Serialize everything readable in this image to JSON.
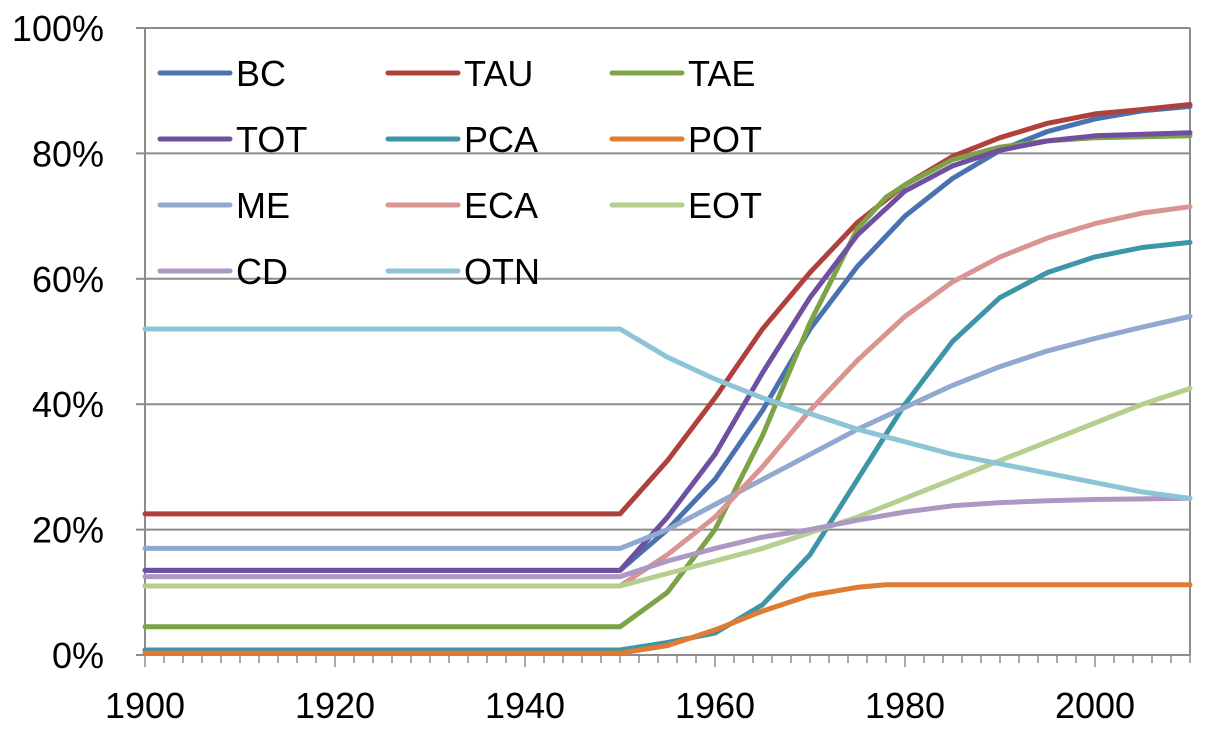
{
  "chart_data": {
    "type": "line",
    "title": "",
    "xlabel": "",
    "ylabel": "",
    "xlim": [
      1900,
      2010
    ],
    "ylim": [
      0,
      100
    ],
    "y_unit": "%",
    "grid": true,
    "legend_position": "top-left",
    "y_ticks": [
      {
        "value": 0,
        "label": "0%"
      },
      {
        "value": 20,
        "label": "20%"
      },
      {
        "value": 40,
        "label": "40%"
      },
      {
        "value": 60,
        "label": "60%"
      },
      {
        "value": 80,
        "label": "80%"
      },
      {
        "value": 100,
        "label": "100%"
      }
    ],
    "x_ticks": [
      {
        "value": 1900,
        "label": "1900"
      },
      {
        "value": 1920,
        "label": "1920"
      },
      {
        "value": 1940,
        "label": "1940"
      },
      {
        "value": 1960,
        "label": "1960"
      },
      {
        "value": 1980,
        "label": "1980"
      },
      {
        "value": 2000,
        "label": "2000"
      }
    ],
    "series": [
      {
        "name": "BC",
        "color": "#4a72b0",
        "points": [
          [
            1900,
            13.5
          ],
          [
            1950,
            13.5
          ],
          [
            1955,
            20
          ],
          [
            1960,
            28
          ],
          [
            1965,
            39
          ],
          [
            1970,
            52
          ],
          [
            1975,
            62
          ],
          [
            1980,
            70
          ],
          [
            1985,
            76
          ],
          [
            1990,
            80.5
          ],
          [
            1995,
            83.5
          ],
          [
            2000,
            85.5
          ],
          [
            2005,
            86.8
          ],
          [
            2010,
            87.5
          ]
        ]
      },
      {
        "name": "TAU",
        "color": "#b0403c",
        "points": [
          [
            1900,
            22.5
          ],
          [
            1950,
            22.5
          ],
          [
            1955,
            31
          ],
          [
            1960,
            41
          ],
          [
            1965,
            52
          ],
          [
            1970,
            61
          ],
          [
            1975,
            69
          ],
          [
            1980,
            75
          ],
          [
            1985,
            79.5
          ],
          [
            1990,
            82.5
          ],
          [
            1995,
            84.8
          ],
          [
            2000,
            86.3
          ],
          [
            2005,
            87
          ],
          [
            2010,
            87.8
          ]
        ]
      },
      {
        "name": "TAE",
        "color": "#7da347",
        "points": [
          [
            1900,
            4.5
          ],
          [
            1950,
            4.5
          ],
          [
            1955,
            10
          ],
          [
            1960,
            20
          ],
          [
            1965,
            35
          ],
          [
            1970,
            53
          ],
          [
            1975,
            68
          ],
          [
            1978,
            73
          ],
          [
            1980,
            75
          ],
          [
            1985,
            79
          ],
          [
            1990,
            81
          ],
          [
            1995,
            82
          ],
          [
            2000,
            82.5
          ],
          [
            2010,
            82.8
          ]
        ]
      },
      {
        "name": "TOT",
        "color": "#6f4fa0",
        "points": [
          [
            1900,
            13.5
          ],
          [
            1950,
            13.5
          ],
          [
            1955,
            22
          ],
          [
            1960,
            32
          ],
          [
            1965,
            45
          ],
          [
            1970,
            57
          ],
          [
            1975,
            67
          ],
          [
            1980,
            74
          ],
          [
            1985,
            78
          ],
          [
            1990,
            80.5
          ],
          [
            1995,
            82
          ],
          [
            2000,
            82.8
          ],
          [
            2010,
            83.3
          ]
        ]
      },
      {
        "name": "PCA",
        "color": "#3e95a8",
        "points": [
          [
            1900,
            0.8
          ],
          [
            1950,
            0.8
          ],
          [
            1955,
            2
          ],
          [
            1960,
            3.5
          ],
          [
            1965,
            8
          ],
          [
            1970,
            16
          ],
          [
            1975,
            28
          ],
          [
            1980,
            40
          ],
          [
            1985,
            50
          ],
          [
            1990,
            57
          ],
          [
            1995,
            61
          ],
          [
            2000,
            63.5
          ],
          [
            2005,
            65
          ],
          [
            2010,
            65.8
          ]
        ]
      },
      {
        "name": "POT",
        "color": "#e07b34",
        "points": [
          [
            1900,
            0.3
          ],
          [
            1950,
            0.3
          ],
          [
            1955,
            1.5
          ],
          [
            1960,
            4
          ],
          [
            1965,
            7
          ],
          [
            1970,
            9.5
          ],
          [
            1975,
            10.8
          ],
          [
            1978,
            11.2
          ],
          [
            1985,
            11.2
          ],
          [
            2010,
            11.2
          ]
        ]
      },
      {
        "name": "ME",
        "color": "#91a8d0",
        "points": [
          [
            1900,
            17
          ],
          [
            1950,
            17
          ],
          [
            1955,
            20
          ],
          [
            1960,
            24
          ],
          [
            1965,
            28
          ],
          [
            1970,
            32
          ],
          [
            1975,
            36
          ],
          [
            1980,
            39.5
          ],
          [
            1985,
            43
          ],
          [
            1990,
            46
          ],
          [
            1995,
            48.5
          ],
          [
            2000,
            50.5
          ],
          [
            2005,
            52.3
          ],
          [
            2010,
            54
          ]
        ]
      },
      {
        "name": "ECA",
        "color": "#d99592",
        "points": [
          [
            1900,
            11
          ],
          [
            1950,
            11
          ],
          [
            1955,
            16
          ],
          [
            1960,
            22
          ],
          [
            1965,
            30
          ],
          [
            1970,
            39
          ],
          [
            1975,
            47
          ],
          [
            1980,
            54
          ],
          [
            1985,
            59.5
          ],
          [
            1990,
            63.5
          ],
          [
            1995,
            66.5
          ],
          [
            2000,
            68.8
          ],
          [
            2005,
            70.5
          ],
          [
            2010,
            71.5
          ]
        ]
      },
      {
        "name": "EOT",
        "color": "#b5cf8e",
        "points": [
          [
            1900,
            11
          ],
          [
            1950,
            11
          ],
          [
            1955,
            13
          ],
          [
            1960,
            15
          ],
          [
            1965,
            17
          ],
          [
            1970,
            19.5
          ],
          [
            1975,
            22
          ],
          [
            1980,
            25
          ],
          [
            1985,
            28
          ],
          [
            1990,
            31
          ],
          [
            1995,
            34
          ],
          [
            2000,
            37
          ],
          [
            2005,
            40
          ],
          [
            2010,
            42.5
          ]
        ]
      },
      {
        "name": "CD",
        "color": "#ad98c4",
        "points": [
          [
            1900,
            12.5
          ],
          [
            1950,
            12.5
          ],
          [
            1955,
            15
          ],
          [
            1960,
            17
          ],
          [
            1965,
            18.8
          ],
          [
            1970,
            20
          ],
          [
            1975,
            21.5
          ],
          [
            1980,
            22.8
          ],
          [
            1985,
            23.8
          ],
          [
            1990,
            24.3
          ],
          [
            1995,
            24.6
          ],
          [
            2000,
            24.8
          ],
          [
            2010,
            25
          ]
        ]
      },
      {
        "name": "OTN",
        "color": "#8ec4d8",
        "points": [
          [
            1900,
            52
          ],
          [
            1950,
            52
          ],
          [
            1955,
            47.5
          ],
          [
            1960,
            44
          ],
          [
            1965,
            41
          ],
          [
            1970,
            38.5
          ],
          [
            1975,
            36
          ],
          [
            1980,
            34
          ],
          [
            1985,
            32
          ],
          [
            1990,
            30.5
          ],
          [
            1995,
            29
          ],
          [
            2000,
            27.5
          ],
          [
            2005,
            26
          ],
          [
            2010,
            25
          ]
        ]
      }
    ],
    "legend_columns": 3
  }
}
